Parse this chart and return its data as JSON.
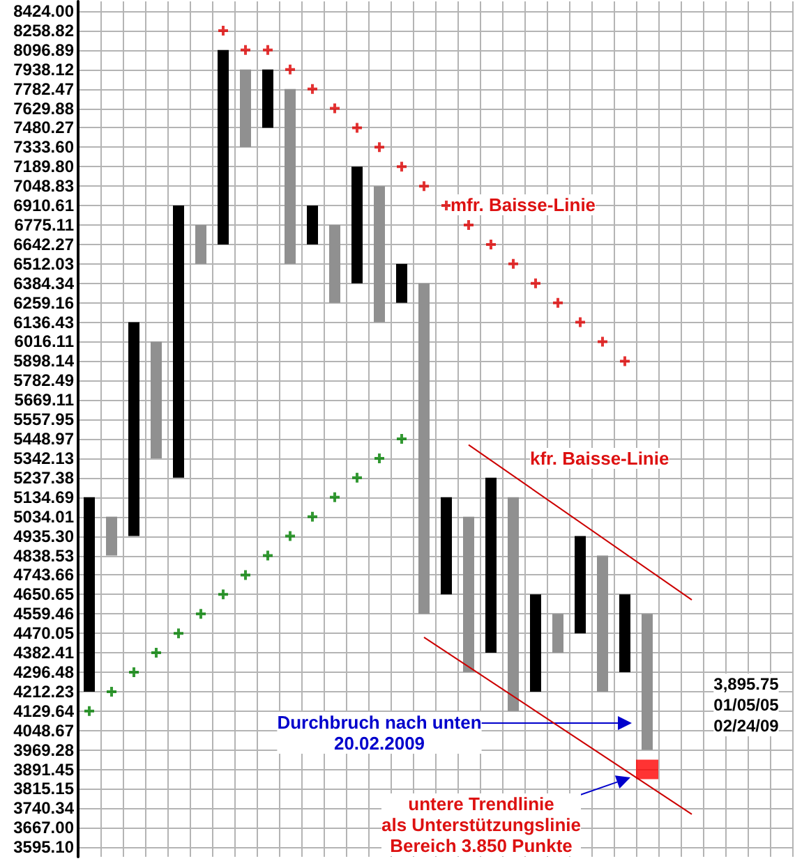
{
  "chart_data": {
    "type": "bar",
    "categories": [
      null,
      null,
      null,
      null,
      null,
      null,
      null,
      null,
      null,
      null,
      null,
      null,
      null,
      null,
      null,
      null,
      null,
      null,
      null,
      null,
      null,
      null,
      null,
      null,
      null,
      null,
      null,
      null,
      null,
      null,
      null,
      null
    ],
    "ylim": [
      3560,
      8508
    ],
    "log": true,
    "grid": true,
    "tick_labels": "y",
    "yticks": [
      {
        "value": 8424,
        "label": "8424.00"
      },
      8258.82,
      8096.89,
      7938.12,
      7782.47,
      7629.88,
      7480.27,
      {
        "value": 7333.6,
        "label": "7333.60"
      },
      {
        "value": 7189.8,
        "label": "7189.80"
      },
      7048.83,
      6910.61,
      6775.11,
      6642.27,
      6512.03,
      6384.34,
      6259.16,
      6136.43,
      6016.11,
      5898.14,
      5782.49,
      5669.11,
      5557.95,
      5448.97,
      5342.13,
      5237.38,
      5134.69,
      5034.01,
      {
        "value": 4935.3,
        "label": "4935.30"
      },
      4838.53,
      4743.66,
      4650.65,
      4559.46,
      4470.05,
      4382.41,
      4296.48,
      4212.23,
      4129.64,
      4048.67,
      3969.28,
      3891.45,
      3815.15,
      3740.34,
      {
        "value": 3667,
        "label": "3667.00"
      },
      {
        "value": 3595.1,
        "label": "3595.10"
      }
    ],
    "series": [
      {
        "colors": [
          "#000000",
          "#909090",
          "#000000",
          "#909090",
          "#000000",
          "#909090",
          "#000000",
          "#909090",
          "#000000",
          "#909090",
          "#000000",
          "#909090",
          "#000000",
          "#909090",
          "#000000",
          "#909090",
          "#000000",
          "#909090",
          "#000000",
          "#909090",
          "#000000",
          "#909090",
          "#000000",
          "#909090",
          "#000000",
          "#909090",
          null,
          null,
          null,
          null,
          null,
          null
        ],
        "base": [
          4212.23,
          4838.53,
          4935.3,
          5342.13,
          5237.38,
          6512.03,
          6642.27,
          7333.6,
          7480.27,
          6512.03,
          6642.27,
          6259.16,
          6384.34,
          6136.43,
          6259.16,
          4559.46,
          4650.65,
          4296.48,
          4382.41,
          4129.64,
          4212.23,
          4382.41,
          4470.05,
          4212.23,
          4296.48,
          3969.28,
          null,
          null,
          null,
          null,
          null,
          null
        ],
        "values": [
          922.46,
          195.48,
          1201.13,
          673.98,
          1673.23,
          263.08,
          1454.62,
          604.52,
          457.85,
          1270.44,
          268.34,
          515.95,
          805.46,
          912.4,
          252.87,
          1824.88,
          484.04,
          737.53,
          854.97,
          1005.05,
          438.42,
          177.05,
          465.25,
          626.3,
          354.17,
          590.18,
          null,
          null,
          null,
          null,
          null,
          null
        ]
      },
      {
        "type": "scatter",
        "marker": "square",
        "color": "#ff0000",
        "values": [
          null,
          null,
          null,
          null,
          null,
          null,
          null,
          null,
          null,
          null,
          null,
          null,
          null,
          null,
          null,
          null,
          null,
          null,
          null,
          null,
          null,
          null,
          null,
          null,
          null,
          3891.45,
          null,
          null,
          null,
          null,
          null,
          null
        ]
      },
      {
        "type": "scatter",
        "marker": "cross",
        "color": "#008000",
        "values": [
          4129.64,
          4212.23,
          4296.48,
          4382.41,
          4470.05,
          4559.46,
          4650.65,
          4743.66,
          4838.53,
          4935.3,
          5034.01,
          5134.69,
          5237.38,
          5342.13,
          5448.97,
          null,
          null,
          null,
          null,
          null,
          null,
          null,
          null,
          null,
          null,
          null,
          null,
          null,
          null,
          null,
          null,
          null
        ]
      },
      {
        "type": "scatter",
        "marker": "cross",
        "color": "#dd0000",
        "values": [
          null,
          null,
          null,
          null,
          null,
          null,
          8258.82,
          8096.89,
          8096.89,
          7938.12,
          7782.47,
          7629.88,
          7480.27,
          7333.6,
          7189.8,
          7048.83,
          6910.61,
          6775.11,
          6642.27,
          6512.03,
          6384.34,
          6259.16,
          6136.43,
          6016.11,
          5898.14,
          null,
          null,
          null,
          null,
          null,
          null,
          null
        ]
      },
      {
        "type": "line",
        "marker": "none",
        "line_style": "solid",
        "color": "#cc0000",
        "values": [
          null,
          null,
          null,
          null,
          null,
          null,
          null,
          null,
          null,
          null,
          null,
          null,
          null,
          null,
          null,
          null,
          null,
          5416,
          null,
          null,
          null,
          null,
          null,
          null,
          null,
          null,
          null,
          4625,
          null,
          null,
          null,
          null
        ]
      },
      {
        "type": "line",
        "marker": "none",
        "line_style": "solid",
        "color": "#cc0000",
        "values": [
          null,
          null,
          null,
          null,
          null,
          null,
          null,
          null,
          null,
          null,
          null,
          null,
          null,
          null,
          null,
          4452,
          null,
          null,
          null,
          null,
          null,
          null,
          null,
          null,
          null,
          null,
          null,
          3718,
          null,
          null,
          null,
          null
        ]
      }
    ],
    "annotations": [
      "mfr. Baisse-Linie",
      "kfr. Baisse-Linie",
      "Durchbruch nach unten\n20.02.2009",
      "untere Trendlinie\nals Unterstützungslinie\nBereich 3.850 Punkte",
      "3,895.75",
      "01/05/05",
      "02/24/09"
    ]
  }
}
